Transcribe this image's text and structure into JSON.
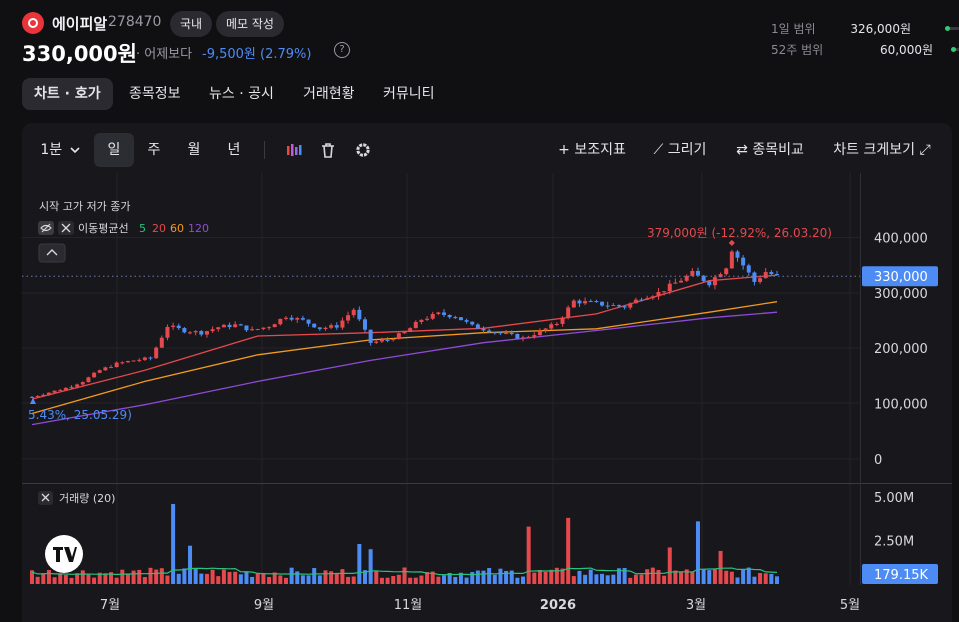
{
  "header": {
    "stock_name": "에이피알",
    "stock_code": "278470",
    "market_badge": "국내",
    "memo_button": "메모 작성",
    "price": "330,000원",
    "compare_label": "· 어제보다",
    "change": "-9,500원 (2.79%)",
    "help_glyph": "?",
    "day_range_label": "1일 범위",
    "day_range_value": "326,000원",
    "week52_range_label": "52주 범위",
    "week52_range_value": "60,000원"
  },
  "tabs": [
    {
      "label": "차트 · 호가",
      "active": true
    },
    {
      "label": "종목정보",
      "active": false
    },
    {
      "label": "뉴스 · 공시",
      "active": false
    },
    {
      "label": "거래현황",
      "active": false
    },
    {
      "label": "커뮤니티",
      "active": false
    }
  ],
  "toolbar": {
    "interval": "1분",
    "interval_chevron_icon": "chevron-down-icon",
    "periods": [
      "일",
      "주",
      "월",
      "년"
    ],
    "active_period": "일",
    "icons": [
      "candle-type-icon",
      "trash-icon",
      "gear-icon"
    ],
    "indicator_button": "+ 보조지표",
    "draw_button": "⟋ 그리기",
    "compare_button": "⇄ 종목비교",
    "expand_button": "차트 크게보기 ⤢"
  },
  "chart_data": {
    "type": "candlestick",
    "ohlc_label": "시작 고가 저가 종가",
    "ma_label": "이동평균선",
    "ma_periods": [
      {
        "label": "5",
        "color": "#27c27c"
      },
      {
        "label": "20",
        "color": "#e5484d"
      },
      {
        "label": "60",
        "color": "#f29a1f"
      },
      {
        "label": "120",
        "color": "#8f4bd8"
      }
    ],
    "colors": {
      "up": "#e5484d",
      "down": "#4d8cf5",
      "volume_ma": "#27c27c"
    },
    "price_axis": {
      "ticks": [
        "400,000",
        "300,000",
        "200,000",
        "100,000",
        "0"
      ],
      "min": 0,
      "max": 400000
    },
    "current_price": {
      "value": 330000,
      "label": "330,000"
    },
    "high_annotation": {
      "value": 379000,
      "label": "379,000원 (-12.92%, 26.03.20)"
    },
    "low_annotation": {
      "value": 110000,
      "label": "5.43%, 25.05.29)"
    },
    "x_axis": {
      "ticks": [
        "7월",
        "9월",
        "11월",
        "2026",
        "3월",
        "5월"
      ]
    },
    "close_path": [
      [
        0,
        112000
      ],
      [
        3,
        120000
      ],
      [
        6,
        128000
      ],
      [
        9,
        140000
      ],
      [
        12,
        160000
      ],
      [
        15,
        172000
      ],
      [
        18,
        178000
      ],
      [
        21,
        182000
      ],
      [
        24,
        240000
      ],
      [
        27,
        232000
      ],
      [
        30,
        228000
      ],
      [
        33,
        238000
      ],
      [
        36,
        242000
      ],
      [
        39,
        232000
      ],
      [
        42,
        240000
      ],
      [
        45,
        258000
      ],
      [
        48,
        250000
      ],
      [
        51,
        236000
      ],
      [
        54,
        240000
      ],
      [
        57,
        270000
      ],
      [
        60,
        210000
      ],
      [
        63,
        215000
      ],
      [
        66,
        228000
      ],
      [
        69,
        252000
      ],
      [
        72,
        262000
      ],
      [
        75,
        258000
      ],
      [
        78,
        240000
      ],
      [
        81,
        232000
      ],
      [
        84,
        225000
      ],
      [
        87,
        218000
      ],
      [
        90,
        230000
      ],
      [
        93,
        245000
      ],
      [
        96,
        285000
      ],
      [
        99,
        282000
      ],
      [
        102,
        278000
      ],
      [
        105,
        275000
      ],
      [
        108,
        292000
      ],
      [
        111,
        300000
      ],
      [
        114,
        318000
      ],
      [
        117,
        335000
      ],
      [
        120,
        318000
      ],
      [
        123,
        348000
      ],
      [
        124,
        379000
      ],
      [
        126,
        350000
      ],
      [
        128,
        320000
      ],
      [
        130,
        338000
      ],
      [
        132,
        330000
      ]
    ],
    "ma20": [
      [
        0,
        108000
      ],
      [
        20,
        160000
      ],
      [
        40,
        222000
      ],
      [
        60,
        228000
      ],
      [
        80,
        236000
      ],
      [
        100,
        262000
      ],
      [
        120,
        322000
      ],
      [
        132,
        332000
      ]
    ],
    "ma60": [
      [
        0,
        82000
      ],
      [
        20,
        140000
      ],
      [
        40,
        188000
      ],
      [
        60,
        215000
      ],
      [
        80,
        228000
      ],
      [
        100,
        235000
      ],
      [
        120,
        265000
      ],
      [
        132,
        284000
      ]
    ],
    "ma120": [
      [
        0,
        62000
      ],
      [
        20,
        98000
      ],
      [
        40,
        140000
      ],
      [
        60,
        178000
      ],
      [
        80,
        210000
      ],
      [
        100,
        232000
      ],
      [
        120,
        255000
      ],
      [
        132,
        265000
      ]
    ],
    "volume": {
      "label": "거래량 (20)",
      "ticks": [
        "5.00M",
        "2.50M"
      ],
      "max": 5000000,
      "current": {
        "label": "179.15K"
      },
      "spikes": [
        [
          25,
          4600000
        ],
        [
          28,
          2200000
        ],
        [
          58,
          2300000
        ],
        [
          60,
          2000000
        ],
        [
          88,
          3300000
        ],
        [
          95,
          3800000
        ],
        [
          113,
          2100000
        ],
        [
          118,
          3600000
        ],
        [
          122,
          1900000
        ]
      ]
    }
  }
}
